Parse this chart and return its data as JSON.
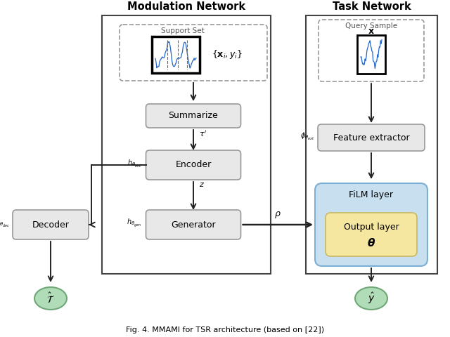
{
  "title": "Fig. 4. MMAMI for TSR architecture (based on [22])",
  "modulation_network_title": "Modulation Network",
  "task_network_title": "Task Network",
  "bg_color": "#ffffff",
  "box_fc": "#e8e8e8",
  "box_ec": "#999999",
  "blue_bg": "#c8dff0",
  "blue_ec": "#7bafd4",
  "yellow_fc": "#f5e6a0",
  "yellow_ec": "#c8b860",
  "green_fc": "#b0ddb8",
  "green_ec": "#70a878",
  "dashed_ec": "#999999",
  "outer_ec": "#444444"
}
